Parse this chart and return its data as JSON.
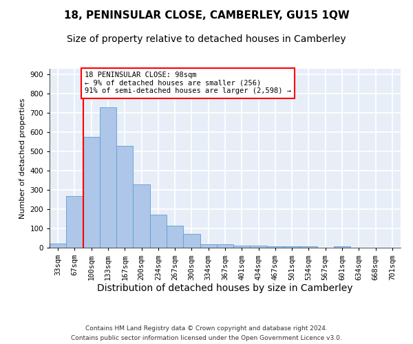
{
  "title": "18, PENINSULAR CLOSE, CAMBERLEY, GU15 1QW",
  "subtitle": "Size of property relative to detached houses in Camberley",
  "xlabel": "Distribution of detached houses by size in Camberley",
  "ylabel": "Number of detached properties",
  "categories": [
    "33sqm",
    "67sqm",
    "100sqm",
    "133sqm",
    "167sqm",
    "200sqm",
    "234sqm",
    "267sqm",
    "300sqm",
    "334sqm",
    "367sqm",
    "401sqm",
    "434sqm",
    "467sqm",
    "501sqm",
    "534sqm",
    "567sqm",
    "601sqm",
    "634sqm",
    "668sqm",
    "701sqm"
  ],
  "values": [
    20,
    270,
    575,
    730,
    530,
    330,
    170,
    115,
    70,
    18,
    18,
    10,
    10,
    8,
    8,
    7,
    0,
    8,
    0,
    0,
    0
  ],
  "bar_color": "#aec6e8",
  "bar_edge_color": "#5a9fd4",
  "vline_x": 1.5,
  "vline_color": "red",
  "annotation_text": "18 PENINSULAR CLOSE: 98sqm\n← 9% of detached houses are smaller (256)\n91% of semi-detached houses are larger (2,598) →",
  "annotation_box_color": "white",
  "annotation_box_edge_color": "red",
  "footnote_line1": "Contains HM Land Registry data © Crown copyright and database right 2024.",
  "footnote_line2": "Contains public sector information licensed under the Open Government Licence v3.0.",
  "ylim": [
    0,
    930
  ],
  "yticks": [
    0,
    100,
    200,
    300,
    400,
    500,
    600,
    700,
    800,
    900
  ],
  "background_color": "#e8eef8",
  "grid_color": "white",
  "title_fontsize": 11,
  "subtitle_fontsize": 10,
  "xlabel_fontsize": 10,
  "ylabel_fontsize": 8,
  "tick_fontsize": 7.5,
  "annotation_fontsize": 7.5,
  "footnote_fontsize": 6.5
}
